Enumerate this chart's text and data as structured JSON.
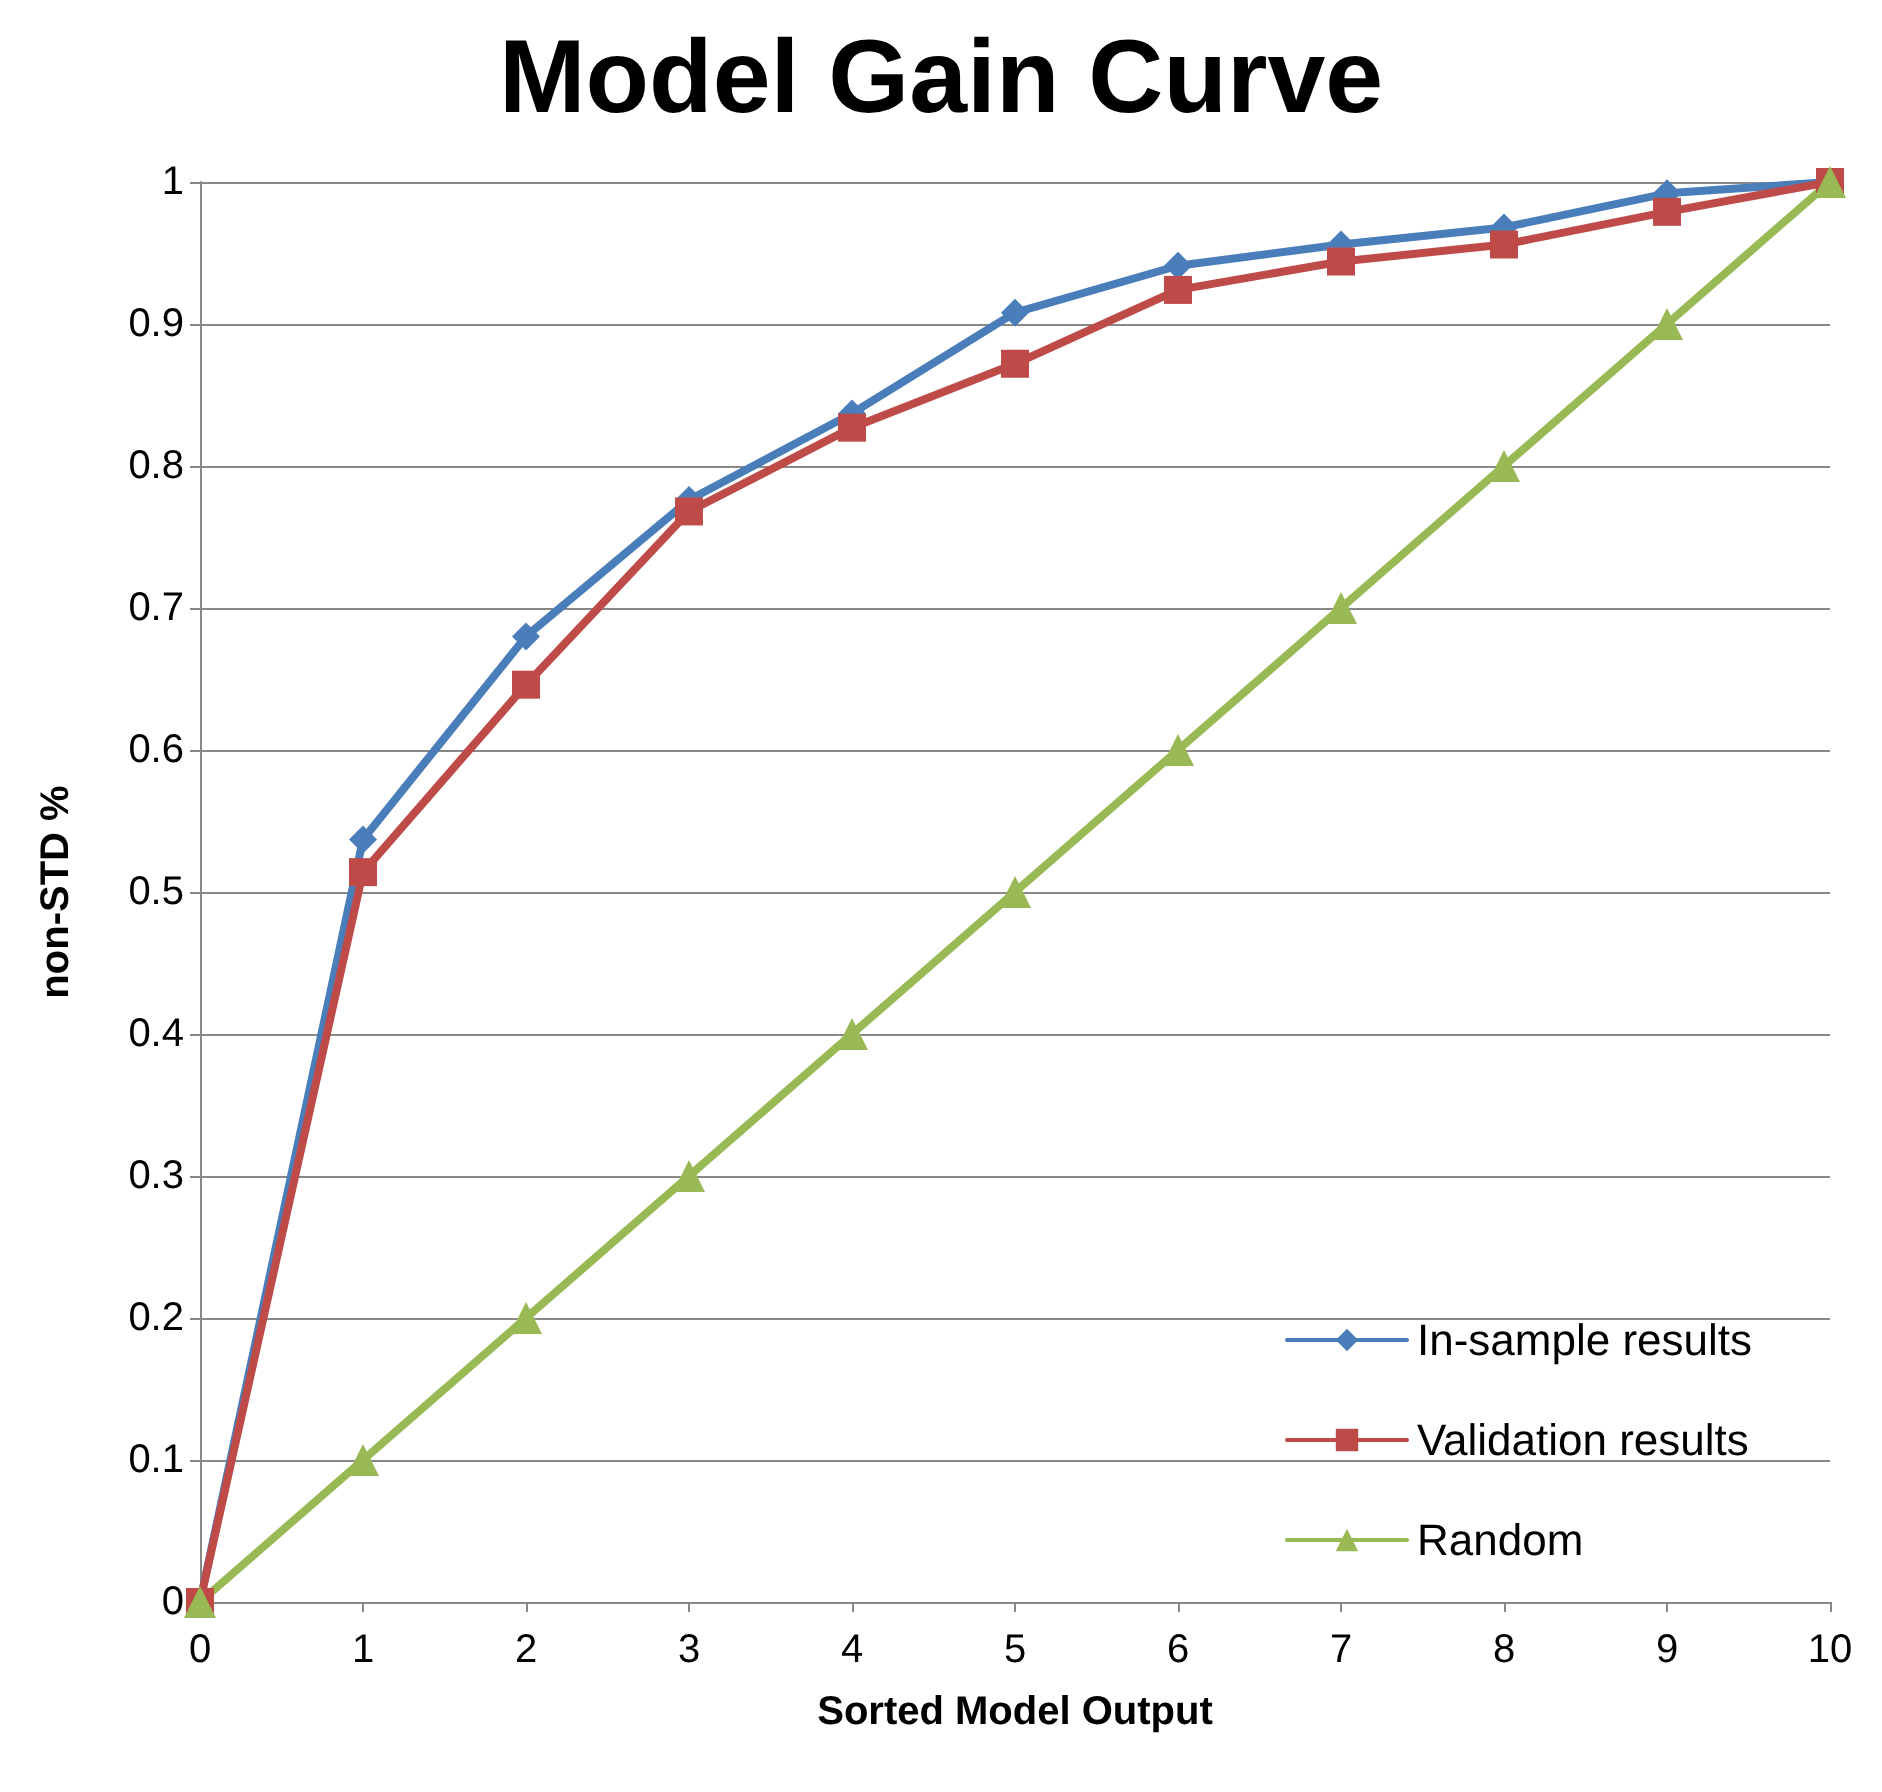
{
  "chart_data": {
    "type": "line",
    "title": "Model Gain Curve",
    "xlabel": "Sorted Model Output",
    "ylabel": "non-STD %",
    "x": [
      0,
      1,
      2,
      3,
      4,
      5,
      6,
      7,
      8,
      9,
      10
    ],
    "series": [
      {
        "name": "In-sample results",
        "color": "#4a7ebb",
        "marker": "diamond",
        "values": [
          0,
          0.537,
          0.68,
          0.776,
          0.837,
          0.908,
          0.941,
          0.956,
          0.968,
          0.992,
          1
        ]
      },
      {
        "name": "Validation results",
        "color": "#be4b48",
        "marker": "square",
        "values": [
          0,
          0.514,
          0.646,
          0.768,
          0.827,
          0.872,
          0.924,
          0.944,
          0.956,
          0.979,
          1
        ]
      },
      {
        "name": "Random",
        "color": "#98b954",
        "marker": "triangle",
        "values": [
          0,
          0.1,
          0.2,
          0.3,
          0.4,
          0.5,
          0.6,
          0.7,
          0.8,
          0.9,
          1
        ]
      }
    ],
    "xlim": [
      0,
      10
    ],
    "xticks": [
      0,
      1,
      2,
      3,
      4,
      5,
      6,
      7,
      8,
      9,
      10
    ],
    "ylim": [
      0,
      1
    ],
    "yticks": [
      0,
      0.1,
      0.2,
      0.3,
      0.4,
      0.5,
      0.6,
      0.7,
      0.8,
      0.9,
      1
    ],
    "grid": "y",
    "legend": "bottom right",
    "line_style": "solid"
  }
}
